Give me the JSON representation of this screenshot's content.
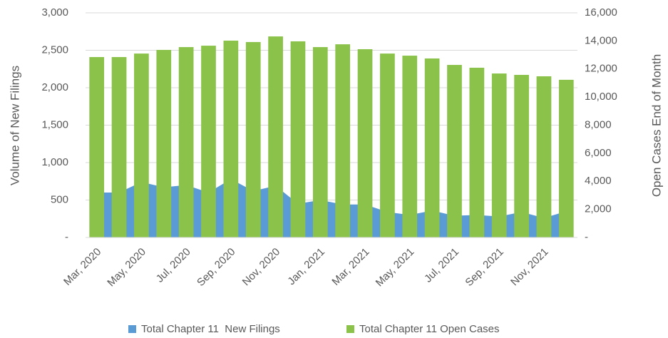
{
  "chart_data": {
    "type": "area-bar",
    "categories": [
      "Mar, 2020",
      null,
      "May, 2020",
      null,
      "Jul, 2020",
      null,
      "Sep, 2020",
      null,
      "Nov, 2020",
      null,
      "Jan, 2021",
      null,
      "Mar, 2021",
      null,
      "May, 2021",
      null,
      "Jul, 2021",
      null,
      "Sep, 2021",
      null,
      "Nov, 2021",
      null
    ],
    "ylabel": "Volume of New Filings",
    "y2label": "Open Cases End of Month",
    "ylim": [
      0,
      3000
    ],
    "yticks": [
      {
        "value": 0,
        "label": "-"
      },
      500,
      {
        "value": 1000,
        "label": "1,000"
      },
      {
        "value": 1500,
        "label": "1,500"
      },
      {
        "value": 2000,
        "label": "2,000"
      },
      {
        "value": 2500,
        "label": "2,500"
      },
      {
        "value": 3000,
        "label": "3,000"
      }
    ],
    "y2lim": [
      0,
      16000
    ],
    "y2ticks": [
      {
        "value": 0,
        "label": "-"
      },
      {
        "value": 2000,
        "label": "2,000"
      },
      {
        "value": 4000,
        "label": "4,000"
      },
      {
        "value": 6000,
        "label": "6,000"
      },
      {
        "value": 8000,
        "label": "8,000"
      },
      {
        "value": 10000,
        "label": "10,000"
      },
      {
        "value": 12000,
        "label": "12,000"
      },
      {
        "value": 14000,
        "label": "14,000"
      },
      {
        "value": 16000,
        "label": "16,000"
      }
    ],
    "grid": true,
    "legend": "bottom",
    "series": [
      {
        "name": "Total Chapter 11  New Filings",
        "color": "#5b9bd5",
        "kind": "area",
        "values": [
          600,
          600,
          740,
          670,
          700,
          600,
          780,
          620,
          690,
          450,
          500,
          440,
          440,
          340,
          300,
          360,
          290,
          300,
          280,
          340,
          260,
          350
        ]
      },
      {
        "name": "Total Chapter 11 Open Cases",
        "color": "#8bc34a",
        "kind": "bar",
        "axis": "y2",
        "values": [
          12850,
          12850,
          13100,
          13360,
          13560,
          13660,
          14020,
          13920,
          14320,
          13970,
          13560,
          13760,
          13410,
          13100,
          12950,
          12750,
          12290,
          12090,
          11680,
          11580,
          11480,
          11230
        ]
      }
    ]
  }
}
